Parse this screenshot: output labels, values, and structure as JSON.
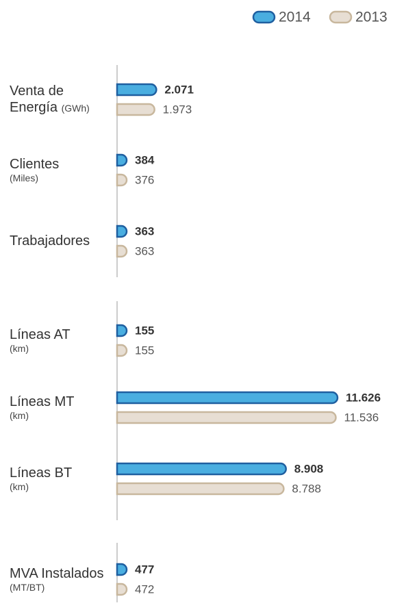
{
  "chart_data": {
    "type": "bar",
    "categories": [
      "Venta de Energía",
      "Clientes",
      "Trabajadores",
      "Líneas AT",
      "Líneas MT",
      "Líneas BT",
      "MVA Instalados"
    ],
    "units": [
      "(GWh)",
      "(Miles)",
      null,
      "(km)",
      "(km)",
      "(km)",
      "(MT/BT)"
    ],
    "series": [
      {
        "name": "2014",
        "color": "#4aaee0",
        "stroke": "#1f5fa0",
        "values": [
          2071,
          384,
          363,
          155,
          11626,
          8908,
          477
        ],
        "value_labels": [
          "2.071",
          "384",
          "363",
          "155",
          "11.626",
          "8.908",
          "477"
        ]
      },
      {
        "name": "2013",
        "color": "#e7ded3",
        "stroke": "#c8b79d",
        "values": [
          1973,
          376,
          363,
          155,
          11536,
          8788,
          472
        ],
        "value_labels": [
          "1.973",
          "376",
          "363",
          "155",
          "11.536",
          "8.788",
          "472"
        ]
      }
    ],
    "legend": "top-right"
  }
}
